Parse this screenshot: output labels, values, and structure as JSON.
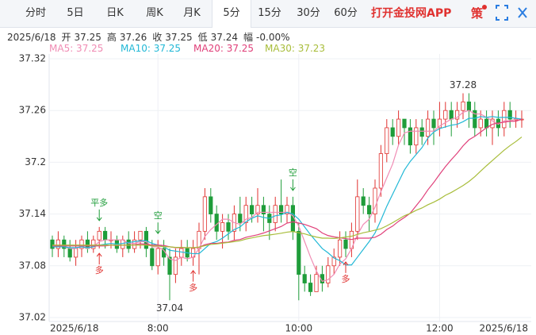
{
  "tabs": {
    "items": [
      "分时",
      "5日",
      "日K",
      "周K",
      "月K",
      "5分",
      "15分",
      "30分",
      "60分"
    ],
    "active": 5,
    "app": "打开金投网APP",
    "strategy": "策"
  },
  "info": {
    "date": "2025/6/18",
    "items": [
      {
        "label": "开",
        "value": "37.25"
      },
      {
        "label": "高",
        "value": "37.26"
      },
      {
        "label": "收",
        "value": "37.25"
      },
      {
        "label": "低",
        "value": "37.24"
      },
      {
        "label": "幅",
        "value": "-0.00%"
      }
    ]
  },
  "chart_data": {
    "type": "candlestick",
    "up_color": "#e0312f",
    "down_color": "#1f9d3a",
    "ylim": [
      37.02,
      37.32
    ],
    "yticks": [
      {
        "value": 37.02,
        "label": "37.02"
      },
      {
        "value": 37.08,
        "label": "37.08"
      },
      37.14,
      {
        "value": 37.2,
        "label": "37.2"
      },
      37.26,
      {
        "value": 37.32,
        "label": "37.32"
      }
    ],
    "grid": true,
    "categories": [
      "2025/6/18",
      null,
      null,
      null,
      null,
      null,
      null,
      null,
      null,
      null,
      null,
      null,
      null,
      null,
      null,
      null,
      null,
      null,
      "8:00",
      null,
      null,
      null,
      null,
      null,
      null,
      null,
      null,
      null,
      null,
      null,
      null,
      null,
      null,
      null,
      null,
      null,
      null,
      null,
      null,
      null,
      null,
      null,
      "10:00",
      null,
      null,
      null,
      null,
      null,
      null,
      null,
      null,
      null,
      null,
      null,
      null,
      null,
      null,
      null,
      null,
      null,
      null,
      null,
      null,
      null,
      null,
      null,
      "12:00",
      null,
      null,
      null,
      null,
      null,
      null,
      null,
      null,
      null,
      null,
      null,
      null,
      null,
      "2025/6/18"
    ],
    "open": [
      37.11,
      37.1,
      37.11,
      37.1,
      37.09,
      37.1,
      37.11,
      37.1,
      37.11,
      37.12,
      37.11,
      37.11,
      37.1,
      37.11,
      37.1,
      37.11,
      37.12,
      37.1,
      37.08,
      37.1,
      37.09,
      37.07,
      37.09,
      37.1,
      37.09,
      37.1,
      37.12,
      37.16,
      37.14,
      37.12,
      37.13,
      37.12,
      37.14,
      37.13,
      37.15,
      37.14,
      37.15,
      37.14,
      37.13,
      37.15,
      37.14,
      37.15,
      37.12,
      37.07,
      37.06,
      37.05,
      37.07,
      37.06,
      37.08,
      37.09,
      37.11,
      37.1,
      37.12,
      37.16,
      37.15,
      37.14,
      37.17,
      37.21,
      37.24,
      37.23,
      37.25,
      37.24,
      37.22,
      37.24,
      37.23,
      37.25,
      37.24,
      37.25,
      37.26,
      37.25,
      37.26,
      37.27,
      37.26,
      37.24,
      37.25,
      37.24,
      37.25,
      37.24,
      37.26,
      37.25,
      37.25
    ],
    "high": [
      37.115,
      37.12,
      37.115,
      37.11,
      37.11,
      37.115,
      37.12,
      37.115,
      37.125,
      37.125,
      37.12,
      37.115,
      37.115,
      37.12,
      37.12,
      37.12,
      37.125,
      37.11,
      37.11,
      37.11,
      37.1,
      37.1,
      37.11,
      37.11,
      37.11,
      37.13,
      37.17,
      37.17,
      37.15,
      37.14,
      37.14,
      37.15,
      37.16,
      37.16,
      37.16,
      37.17,
      37.16,
      37.15,
      37.16,
      37.18,
      37.16,
      37.16,
      37.13,
      37.08,
      37.07,
      37.08,
      37.08,
      37.09,
      37.1,
      37.12,
      37.12,
      37.13,
      37.18,
      37.17,
      37.16,
      37.18,
      37.22,
      37.25,
      37.25,
      37.26,
      37.25,
      37.25,
      37.25,
      37.25,
      37.26,
      37.26,
      37.27,
      37.27,
      37.27,
      37.27,
      37.28,
      37.28,
      37.27,
      37.26,
      37.26,
      37.26,
      37.26,
      37.27,
      37.27,
      37.26,
      37.26
    ],
    "low": [
      37.09,
      37.09,
      37.09,
      37.085,
      37.08,
      37.09,
      37.095,
      37.095,
      37.1,
      37.1,
      37.1,
      37.095,
      37.09,
      37.095,
      37.095,
      37.1,
      37.09,
      37.075,
      37.07,
      37.08,
      37.04,
      37.06,
      37.08,
      37.085,
      37.08,
      37.07,
      37.11,
      37.13,
      37.11,
      37.1,
      37.11,
      37.11,
      37.12,
      37.12,
      37.13,
      37.13,
      37.12,
      37.11,
      37.12,
      37.13,
      37.13,
      37.11,
      37.04,
      37.05,
      37.045,
      37.05,
      37.05,
      37.055,
      37.07,
      37.08,
      37.09,
      37.09,
      37.11,
      37.14,
      37.12,
      37.13,
      37.16,
      37.2,
      37.22,
      37.22,
      37.22,
      37.21,
      37.21,
      37.22,
      37.22,
      37.22,
      37.23,
      37.24,
      37.23,
      37.24,
      37.25,
      37.24,
      37.23,
      37.23,
      37.23,
      37.22,
      37.23,
      37.23,
      37.24,
      37.24,
      37.24
    ],
    "close": [
      37.1,
      37.11,
      37.1,
      37.09,
      37.1,
      37.11,
      37.1,
      37.11,
      37.12,
      37.11,
      37.11,
      37.1,
      37.11,
      37.1,
      37.11,
      37.12,
      37.1,
      37.08,
      37.1,
      37.09,
      37.07,
      37.09,
      37.1,
      37.09,
      37.1,
      37.12,
      37.16,
      37.14,
      37.12,
      37.13,
      37.12,
      37.14,
      37.13,
      37.15,
      37.14,
      37.15,
      37.14,
      37.13,
      37.15,
      37.14,
      37.15,
      37.12,
      37.07,
      37.06,
      37.05,
      37.07,
      37.06,
      37.08,
      37.09,
      37.11,
      37.1,
      37.12,
      37.16,
      37.15,
      37.14,
      37.17,
      37.21,
      37.24,
      37.23,
      37.25,
      37.24,
      37.22,
      37.24,
      37.23,
      37.25,
      37.24,
      37.25,
      37.26,
      37.25,
      37.26,
      37.27,
      37.26,
      37.24,
      37.25,
      37.24,
      37.25,
      37.24,
      37.26,
      37.25,
      37.25,
      37.25
    ],
    "series": [
      {
        "name": "MA5",
        "legend_label": "MA5: 37.25",
        "color": "#f08cb4",
        "values": [
          37.102,
          37.102,
          37.102,
          37.1,
          37.1,
          37.102,
          37.1,
          37.102,
          37.108,
          37.11,
          37.11,
          37.11,
          37.11,
          37.106,
          37.106,
          37.108,
          37.108,
          37.102,
          37.102,
          37.098,
          37.088,
          37.086,
          37.09,
          37.088,
          37.09,
          37.1,
          37.114,
          37.122,
          37.128,
          37.134,
          37.134,
          37.13,
          37.128,
          37.134,
          37.136,
          37.142,
          37.142,
          37.142,
          37.142,
          37.142,
          37.142,
          37.138,
          37.126,
          37.108,
          37.09,
          37.074,
          37.062,
          37.064,
          37.07,
          37.082,
          37.088,
          37.1,
          37.116,
          37.128,
          37.134,
          37.148,
          37.166,
          37.182,
          37.198,
          37.22,
          37.234,
          37.236,
          37.236,
          37.236,
          37.236,
          37.236,
          37.242,
          37.246,
          37.25,
          37.252,
          37.258,
          37.26,
          37.256,
          37.256,
          37.252,
          37.248,
          37.244,
          37.248,
          37.248,
          37.25,
          37.25
        ]
      },
      {
        "name": "MA10",
        "legend_label": "MA10: 37.25",
        "color": "#22b8d6",
        "values": [
          37.102,
          37.102,
          37.102,
          37.101,
          37.101,
          37.102,
          37.101,
          37.102,
          37.104,
          37.105,
          37.106,
          37.105,
          37.106,
          37.107,
          37.108,
          37.109,
          37.109,
          37.106,
          37.104,
          37.102,
          37.098,
          37.097,
          37.096,
          37.095,
          37.094,
          37.094,
          37.1,
          37.106,
          37.108,
          37.112,
          37.117,
          37.122,
          37.125,
          37.131,
          37.135,
          37.138,
          37.136,
          37.135,
          37.138,
          37.139,
          37.142,
          37.14,
          37.134,
          37.125,
          37.116,
          37.108,
          37.1,
          37.095,
          37.089,
          37.086,
          37.081,
          37.081,
          37.09,
          37.099,
          37.108,
          37.118,
          37.133,
          37.149,
          37.163,
          37.177,
          37.191,
          37.201,
          37.209,
          37.217,
          37.228,
          37.235,
          37.239,
          37.241,
          37.243,
          37.244,
          37.247,
          37.251,
          37.251,
          37.253,
          37.252,
          37.253,
          37.252,
          37.252,
          37.252,
          37.251,
          37.25
        ]
      },
      {
        "name": "MA20",
        "legend_label": "MA20: 37.25",
        "color": "#e0407a",
        "values": [
          37.103,
          37.103,
          37.103,
          37.103,
          37.103,
          37.103,
          37.103,
          37.103,
          37.103,
          37.103,
          37.104,
          37.1035,
          37.104,
          37.104,
          37.1045,
          37.1055,
          37.105,
          37.104,
          37.104,
          37.1035,
          37.102,
          37.101,
          37.101,
          37.101,
          37.101,
          37.1015,
          37.1045,
          37.106,
          37.106,
          37.107,
          37.1075,
          37.1095,
          37.1105,
          37.113,
          37.1145,
          37.116,
          37.118,
          37.1205,
          37.123,
          37.1255,
          37.1295,
          37.131,
          37.1295,
          37.128,
          37.1255,
          37.123,
          37.118,
          37.115,
          37.1135,
          37.1125,
          37.1115,
          37.1105,
          37.112,
          37.112,
          37.112,
          37.113,
          37.1165,
          37.122,
          37.126,
          37.1315,
          37.136,
          37.141,
          37.1495,
          37.158,
          37.168,
          37.1765,
          37.186,
          37.195,
          37.203,
          37.2105,
          37.219,
          37.226,
          37.23,
          37.235,
          37.24,
          37.244,
          37.2455,
          37.2465,
          37.2475,
          37.2475,
          37.25
        ]
      },
      {
        "name": "MA30",
        "legend_label": "MA30: 37.23",
        "color": "#a8bd3a",
        "values": [
          37.104,
          37.104,
          37.104,
          37.104,
          37.104,
          37.104,
          37.104,
          37.104,
          37.104,
          37.104,
          37.104,
          37.104,
          37.104,
          37.104,
          37.104,
          37.104,
          37.104,
          37.103,
          37.103,
          37.102,
          37.102,
          37.1013,
          37.1013,
          37.101,
          37.101,
          37.1017,
          37.1033,
          37.1047,
          37.1053,
          37.1063,
          37.107,
          37.108,
          37.109,
          37.111,
          37.1123,
          37.1137,
          37.115,
          37.1157,
          37.1167,
          37.1177,
          37.119,
          37.1197,
          37.1183,
          37.117,
          37.115,
          37.1133,
          37.112,
          37.112,
          37.1117,
          37.1123,
          37.1133,
          37.1143,
          37.1163,
          37.1183,
          37.1197,
          37.1213,
          37.123,
          37.1263,
          37.13,
          37.134,
          37.138,
          37.1407,
          37.1443,
          37.147,
          37.1507,
          37.1537,
          37.1573,
          37.1617,
          37.165,
          37.169,
          37.173,
          37.1777,
          37.1833,
          37.1897,
          37.196,
          37.202,
          37.208,
          37.214,
          37.2193,
          37.224,
          37.2293
        ]
      }
    ],
    "annotations": [
      {
        "text": "平多",
        "index": 8,
        "position": "above"
      },
      {
        "text": "空",
        "index": 18,
        "position": "above"
      },
      {
        "text": "空",
        "index": 41,
        "position": "above"
      },
      {
        "text": "多",
        "index": 8,
        "position": "below"
      },
      {
        "text": "多",
        "index": 24,
        "position": "below"
      },
      {
        "text": "多",
        "index": 50,
        "position": "below"
      }
    ],
    "extremes": [
      {
        "text": "37.28",
        "index": 70,
        "position": "above"
      },
      {
        "text": "37.04",
        "index": 20,
        "position": "below"
      }
    ]
  }
}
